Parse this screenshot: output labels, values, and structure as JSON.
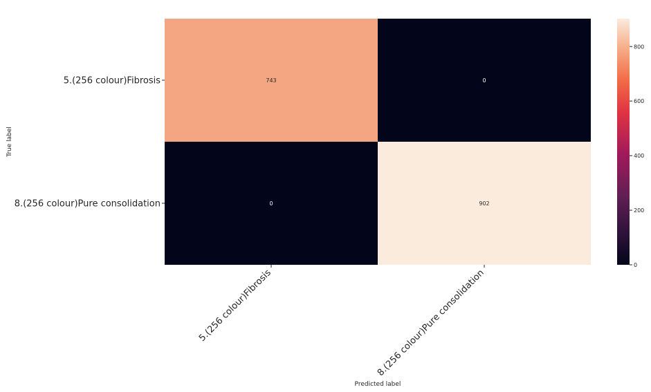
{
  "chart_data": {
    "type": "heatmap",
    "title": "",
    "xlabel": "Predicted label",
    "ylabel": "True label",
    "x_categories": [
      "5.(256 colour)Fibrosis",
      "8.(256 colour)Pure consolidation"
    ],
    "y_categories": [
      "5.(256 colour)Fibrosis",
      "8.(256 colour)Pure consolidation"
    ],
    "matrix": [
      [
        743,
        0
      ],
      [
        0,
        902
      ]
    ],
    "colormap": "rocket",
    "colorbar": {
      "min": 0,
      "max": 902,
      "ticks": [
        0,
        200,
        400,
        600,
        800
      ]
    },
    "grid": false,
    "legend": "none"
  },
  "colors": {
    "low": "#03051a",
    "cell_743": "#f4a582",
    "high": "#faebdd",
    "text_dark": "#262626",
    "text_light": "#ffffff"
  }
}
